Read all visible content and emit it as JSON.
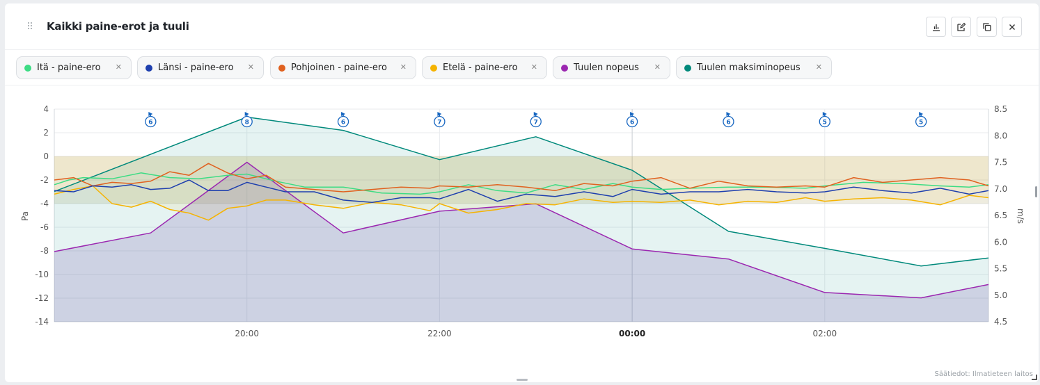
{
  "widget": {
    "title": "Kaikki paine-erot ja tuuli",
    "credit": "Säätiedot: Ilmatieteen laitos",
    "buttons": [
      "chart-icon",
      "edit-icon",
      "copy-icon",
      "close-icon"
    ]
  },
  "legend": [
    {
      "label": "Itä - paine-ero",
      "color": "#3ddc84"
    },
    {
      "label": "Länsi - paine-ero",
      "color": "#1e3fae"
    },
    {
      "label": "Pohjoinen - paine-ero",
      "color": "#e0611f"
    },
    {
      "label": "Etelä - paine-ero",
      "color": "#f5b301"
    },
    {
      "label": "Tuulen nopeus",
      "color": "#9b27b0"
    },
    {
      "label": "Tuulen maksiminopeus",
      "color": "#00897b"
    }
  ],
  "chart_data": {
    "type": "line",
    "x_range_hours": [
      18.0,
      27.7
    ],
    "x_ticks": [
      {
        "h": 20,
        "label": "20:00",
        "bold": false
      },
      {
        "h": 22,
        "label": "22:00",
        "bold": false
      },
      {
        "h": 24,
        "label": "00:00",
        "bold": true
      },
      {
        "h": 26,
        "label": "02:00",
        "bold": false
      }
    ],
    "left_axis": {
      "label": "Pa",
      "min": -14,
      "max": 4,
      "ticks": [
        "4",
        "2",
        "0",
        "-2",
        "-4",
        "-6",
        "-8",
        "-10",
        "-12",
        "-14"
      ]
    },
    "right_axis": {
      "label": "m/s",
      "min": 4.5,
      "max": 8.5,
      "ticks": [
        "8.5",
        "8.0",
        "7.5",
        "7.0",
        "6.5",
        "6.0",
        "5.5",
        "5.0",
        "4.5"
      ]
    },
    "target_band_pa": [
      -4,
      0
    ],
    "wind_direction_markers": [
      {
        "h": 19.0,
        "value": "6"
      },
      {
        "h": 20.0,
        "value": "8"
      },
      {
        "h": 21.0,
        "value": "6"
      },
      {
        "h": 22.0,
        "value": "7"
      },
      {
        "h": 23.0,
        "value": "7"
      },
      {
        "h": 24.0,
        "value": "6"
      },
      {
        "h": 25.0,
        "value": "6"
      },
      {
        "h": 26.0,
        "value": "5"
      },
      {
        "h": 27.0,
        "value": "5"
      }
    ],
    "series": [
      {
        "name": "Tuulen maksiminopeus",
        "axis": "right",
        "color": "#00897b",
        "x": [
          18.0,
          20.0,
          21.0,
          22.0,
          23.0,
          24.0,
          25.0,
          26.0,
          27.0,
          27.7
        ],
        "values": [
          6.95,
          8.35,
          8.1,
          7.55,
          7.98,
          7.35,
          6.2,
          5.88,
          5.55,
          5.7
        ]
      },
      {
        "name": "Tuulen nopeus",
        "axis": "right",
        "color": "#9b27b0",
        "x": [
          18.0,
          19.0,
          20.0,
          21.0,
          22.0,
          23.0,
          24.0,
          25.0,
          26.0,
          27.0,
          27.7
        ],
        "values": [
          5.82,
          6.17,
          7.5,
          6.17,
          6.58,
          6.72,
          5.87,
          5.68,
          5.05,
          4.95,
          5.2
        ]
      },
      {
        "name": "Itä - paine-ero",
        "axis": "left",
        "color": "#3ddc84",
        "x": [
          18.0,
          18.15,
          18.3,
          18.6,
          18.9,
          19.2,
          19.5,
          19.8,
          20.0,
          20.3,
          20.6,
          21.0,
          21.4,
          21.8,
          22.0,
          22.3,
          22.6,
          22.9,
          23.2,
          23.5,
          23.8,
          24.0,
          24.3,
          24.6,
          25.0,
          25.4,
          25.8,
          26.0,
          26.4,
          26.8,
          27.2,
          27.5,
          27.7
        ],
        "values": [
          -2.4,
          -2.0,
          -1.8,
          -1.9,
          -1.4,
          -1.8,
          -1.9,
          -1.6,
          -1.5,
          -2.1,
          -2.6,
          -2.6,
          -3.1,
          -3.2,
          -3.0,
          -2.4,
          -2.9,
          -3.1,
          -2.4,
          -2.8,
          -2.3,
          -2.6,
          -2.8,
          -2.7,
          -2.6,
          -2.6,
          -2.7,
          -2.5,
          -2.2,
          -2.3,
          -2.5,
          -2.6,
          -2.4
        ]
      },
      {
        "name": "Länsi - paine-ero",
        "axis": "left",
        "color": "#1e3fae",
        "x": [
          18.0,
          18.2,
          18.4,
          18.6,
          18.8,
          19.0,
          19.2,
          19.4,
          19.6,
          19.8,
          20.0,
          20.2,
          20.4,
          20.7,
          21.0,
          21.3,
          21.6,
          21.9,
          22.0,
          22.3,
          22.6,
          22.9,
          23.2,
          23.5,
          23.8,
          24.0,
          24.3,
          24.6,
          24.9,
          25.2,
          25.5,
          25.8,
          26.0,
          26.3,
          26.6,
          26.9,
          27.2,
          27.5,
          27.7
        ],
        "values": [
          -2.9,
          -3.0,
          -2.5,
          -2.6,
          -2.4,
          -2.8,
          -2.7,
          -2.0,
          -2.9,
          -2.9,
          -2.2,
          -2.6,
          -3.0,
          -3.0,
          -3.7,
          -3.9,
          -3.5,
          -3.5,
          -3.6,
          -2.8,
          -3.8,
          -3.2,
          -3.4,
          -3.0,
          -3.4,
          -2.8,
          -3.2,
          -3.0,
          -3.0,
          -2.8,
          -3.0,
          -3.1,
          -3.0,
          -2.6,
          -2.9,
          -3.1,
          -2.7,
          -3.2,
          -2.9
        ]
      },
      {
        "name": "Pohjoinen - paine-ero",
        "axis": "left",
        "color": "#e0611f",
        "x": [
          18.0,
          18.2,
          18.4,
          18.6,
          18.8,
          19.0,
          19.2,
          19.4,
          19.6,
          19.8,
          20.0,
          20.2,
          20.4,
          20.7,
          21.0,
          21.3,
          21.6,
          21.9,
          22.0,
          22.3,
          22.6,
          22.9,
          23.2,
          23.5,
          23.8,
          24.0,
          24.3,
          24.6,
          24.9,
          25.2,
          25.5,
          25.8,
          26.0,
          26.3,
          26.6,
          26.9,
          27.2,
          27.5,
          27.7
        ],
        "values": [
          -2.0,
          -1.8,
          -2.5,
          -2.2,
          -2.3,
          -2.1,
          -1.3,
          -1.6,
          -0.6,
          -1.4,
          -1.9,
          -1.6,
          -2.6,
          -2.8,
          -3.0,
          -2.8,
          -2.6,
          -2.7,
          -2.5,
          -2.6,
          -2.4,
          -2.6,
          -2.9,
          -2.3,
          -2.5,
          -2.1,
          -1.8,
          -2.7,
          -2.1,
          -2.5,
          -2.6,
          -2.5,
          -2.6,
          -1.8,
          -2.2,
          -2.0,
          -1.8,
          -2.0,
          -2.5
        ]
      },
      {
        "name": "Etelä - paine-ero",
        "axis": "left",
        "color": "#f5b301",
        "x": [
          18.0,
          18.2,
          18.4,
          18.6,
          18.8,
          19.0,
          19.2,
          19.4,
          19.6,
          19.8,
          20.0,
          20.2,
          20.4,
          20.7,
          21.0,
          21.3,
          21.6,
          21.9,
          22.0,
          22.3,
          22.6,
          22.9,
          23.2,
          23.5,
          23.8,
          24.0,
          24.3,
          24.6,
          24.9,
          25.2,
          25.5,
          25.8,
          26.0,
          26.3,
          26.6,
          26.9,
          27.2,
          27.5,
          27.7
        ],
        "values": [
          -3.2,
          -2.8,
          -2.5,
          -4.0,
          -4.3,
          -3.8,
          -4.5,
          -4.8,
          -5.4,
          -4.4,
          -4.2,
          -3.7,
          -3.7,
          -4.1,
          -4.4,
          -3.9,
          -4.1,
          -4.6,
          -4.0,
          -4.8,
          -4.5,
          -4.0,
          -4.1,
          -3.6,
          -3.9,
          -3.8,
          -3.9,
          -3.7,
          -4.1,
          -3.8,
          -3.9,
          -3.5,
          -3.8,
          -3.6,
          -3.5,
          -3.7,
          -4.1,
          -3.3,
          -3.5
        ]
      }
    ]
  }
}
